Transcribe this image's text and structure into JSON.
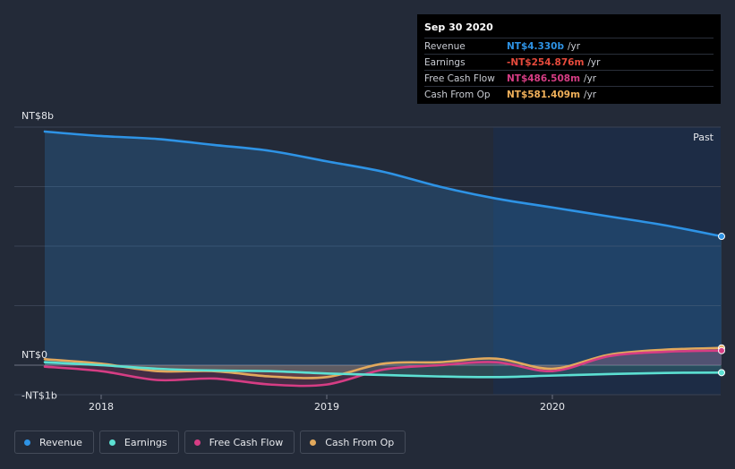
{
  "tooltip": {
    "date": "Sep 30 2020",
    "rows": [
      {
        "label": "Revenue",
        "value": "NT$4.330b",
        "unit": "/yr",
        "color": "#2e93e5"
      },
      {
        "label": "Earnings",
        "value": "-NT$254.876m",
        "unit": "/yr",
        "color": "#e64a3c"
      },
      {
        "label": "Free Cash Flow",
        "value": "NT$486.508m",
        "unit": "/yr",
        "color": "#d63d84"
      },
      {
        "label": "Cash From Op",
        "value": "NT$581.409m",
        "unit": "/yr",
        "color": "#f0b05a"
      }
    ]
  },
  "past_label": "Past",
  "legend": [
    {
      "label": "Revenue",
      "color": "#2e93e5"
    },
    {
      "label": "Earnings",
      "color": "#5ce0d2"
    },
    {
      "label": "Free Cash Flow",
      "color": "#d63d84"
    },
    {
      "label": "Cash From Op",
      "color": "#e2a95d"
    }
  ],
  "chart_data": {
    "type": "line",
    "y_tick_labels": [
      "NT$8b",
      "NT$0",
      "-NT$1b"
    ],
    "x_tick_labels": [
      "2018",
      "2019",
      "2020"
    ],
    "ylim": [
      -1,
      8
    ],
    "y_units": "NT$ billions",
    "series": [
      {
        "name": "Revenue",
        "color": "#2e93e5",
        "x": [
          2017.75,
          2018.0,
          2018.25,
          2018.5,
          2018.75,
          2019.0,
          2019.25,
          2019.5,
          2019.75,
          2020.0,
          2020.25,
          2020.5,
          2020.75
        ],
        "values": [
          7.85,
          7.7,
          7.6,
          7.4,
          7.2,
          6.85,
          6.5,
          6.0,
          5.6,
          5.3,
          5.0,
          4.7,
          4.33
        ]
      },
      {
        "name": "Earnings",
        "color": "#5ce0d2",
        "x": [
          2017.75,
          2018.0,
          2018.25,
          2018.5,
          2018.75,
          2019.0,
          2019.25,
          2019.5,
          2019.75,
          2020.0,
          2020.25,
          2020.5,
          2020.75
        ],
        "values": [
          0.1,
          0.0,
          -0.12,
          -0.18,
          -0.2,
          -0.28,
          -0.33,
          -0.38,
          -0.4,
          -0.35,
          -0.3,
          -0.26,
          -0.25
        ]
      },
      {
        "name": "Free Cash Flow",
        "color": "#d63d84",
        "x": [
          2017.75,
          2018.0,
          2018.25,
          2018.5,
          2018.75,
          2019.0,
          2019.25,
          2019.5,
          2019.75,
          2020.0,
          2020.25,
          2020.5,
          2020.75
        ],
        "values": [
          -0.05,
          -0.2,
          -0.5,
          -0.45,
          -0.65,
          -0.65,
          -0.15,
          0.0,
          0.1,
          -0.2,
          0.3,
          0.45,
          0.49
        ]
      },
      {
        "name": "Cash From Op",
        "color": "#e2a95d",
        "x": [
          2017.75,
          2018.0,
          2018.25,
          2018.5,
          2018.75,
          2019.0,
          2019.25,
          2019.5,
          2019.75,
          2020.0,
          2020.25,
          2020.5,
          2020.75
        ],
        "values": [
          0.2,
          0.05,
          -0.2,
          -0.2,
          -0.38,
          -0.4,
          0.05,
          0.1,
          0.22,
          -0.12,
          0.35,
          0.52,
          0.58
        ]
      }
    ]
  }
}
